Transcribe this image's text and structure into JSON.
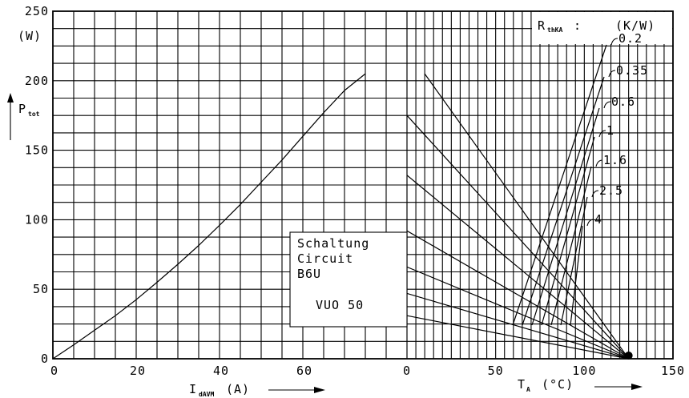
{
  "chart_data": [
    {
      "type": "line",
      "panel": "left",
      "xlabel": "I_dAVM (A)",
      "xlabel_main": "I",
      "xlabel_sub": "dAVM",
      "xlabel_unit": "(A)",
      "ylabel_main": "P",
      "ylabel_sub": "tot",
      "y_unit": "(W)",
      "xlim": [
        0,
        85
      ],
      "ylim": [
        0,
        250
      ],
      "x_ticks": [
        "0",
        "20",
        "40",
        "60"
      ],
      "x_tick_values": [
        0,
        20,
        40,
        60
      ],
      "y_ticks": [
        "0",
        "50",
        "100",
        "150",
        "200",
        "250"
      ],
      "y_tick_values": [
        0,
        50,
        100,
        150,
        200,
        250
      ],
      "series": [
        {
          "x": [
            0,
            5,
            10,
            15,
            20,
            25,
            30,
            35,
            40,
            45,
            50,
            55,
            60,
            65,
            70,
            75
          ],
          "y": [
            0,
            10,
            20.5,
            31,
            42.5,
            55,
            68,
            81.5,
            96,
            111,
            127,
            143,
            160,
            177,
            193,
            205
          ]
        }
      ],
      "annotations": [
        "Schaltung",
        "Circuit",
        "B6U",
        "VUO 50"
      ]
    },
    {
      "type": "line",
      "panel": "right",
      "xlabel_main": "T",
      "xlabel_sub": "A",
      "xlabel_unit": "(°C)",
      "xlim": [
        0,
        150
      ],
      "ylim": [
        0,
        250
      ],
      "x_ticks": [
        "0",
        "50",
        "100",
        "150"
      ],
      "x_tick_values": [
        0,
        50,
        100,
        150
      ],
      "legend_title_main": "R",
      "legend_title_sub": "thKA",
      "legend_title_colon": ":",
      "legend_unit": "(K/W)",
      "series": [
        {
          "name": "0.2",
          "x": [
            10,
            125
          ],
          "y": [
            205,
            0
          ]
        },
        {
          "name": "0.35",
          "x": [
            0,
            125
          ],
          "y": [
            175,
            0
          ]
        },
        {
          "name": "0.6",
          "x": [
            0,
            125
          ],
          "y": [
            132,
            0
          ]
        },
        {
          "name": "1",
          "x": [
            0,
            125
          ],
          "y": [
            92,
            0
          ]
        },
        {
          "name": "1.6",
          "x": [
            0,
            125
          ],
          "y": [
            66,
            0
          ]
        },
        {
          "name": "2.5",
          "x": [
            0,
            125
          ],
          "y": [
            47,
            0
          ]
        },
        {
          "name": "4",
          "x": [
            0,
            125
          ],
          "y": [
            31,
            0
          ]
        }
      ]
    }
  ]
}
